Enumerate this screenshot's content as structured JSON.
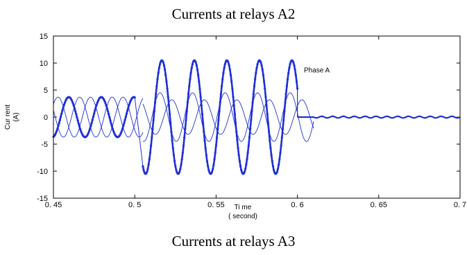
{
  "captions": {
    "top": "Currents at relays A2",
    "bottom": "Currents at relays A3"
  },
  "chart_data": {
    "type": "line",
    "title": "",
    "xlabel": "Ti me",
    "xlabel_unit": "( second)",
    "ylabel": "Cur rent",
    "ylabel_unit": "(A)",
    "xlim": [
      0.45,
      0.7
    ],
    "ylim": [
      -15,
      15
    ],
    "xticks": [
      0.45,
      0.5,
      0.55,
      0.6,
      0.65,
      0.7
    ],
    "xtick_labels": [
      "0. 45",
      "0. 5",
      "0. 55",
      "0. 6",
      "0. 65",
      "0. 7"
    ],
    "yticks": [
      -15,
      -10,
      -5,
      0,
      5,
      10,
      15
    ],
    "ytick_labels": [
      "-15",
      "-10",
      "-5",
      "0",
      "5",
      "10",
      "15"
    ],
    "grid": false,
    "color": "#1f2fd6",
    "frequency_hz": 50,
    "fault_time": 0.505,
    "trip_time": 0.6,
    "annotation": {
      "text": "Phase A",
      "x": 0.604,
      "y": 8.3
    },
    "series": [
      {
        "style": "bold-marked",
        "segments": [
          {
            "t_start": 0.45,
            "t_end": 0.5,
            "amplitude": 3.7,
            "phase_deg": 100
          },
          {
            "t_start": 0.505,
            "t_end": 0.6,
            "amplitude": 10.5,
            "phase_deg": -210
          }
        ],
        "post_trip_level": 0.0
      },
      {
        "style": "thin",
        "segments": [
          {
            "t_start": 0.45,
            "t_end": 0.505,
            "amplitude": 3.7,
            "phase_deg": -20
          },
          {
            "t_start": 0.505,
            "t_end": 0.61,
            "amplitude": 3.2,
            "phase_deg": 40
          }
        ]
      },
      {
        "style": "thin",
        "segments": [
          {
            "t_start": 0.45,
            "t_end": 0.505,
            "amplitude": 3.7,
            "phase_deg": 220
          },
          {
            "t_start": 0.505,
            "t_end": 0.61,
            "amplitude": 4.5,
            "phase_deg": 170
          }
        ]
      }
    ],
    "residual_level": 0.0,
    "residual_range": [
      0.61,
      0.7
    ]
  }
}
